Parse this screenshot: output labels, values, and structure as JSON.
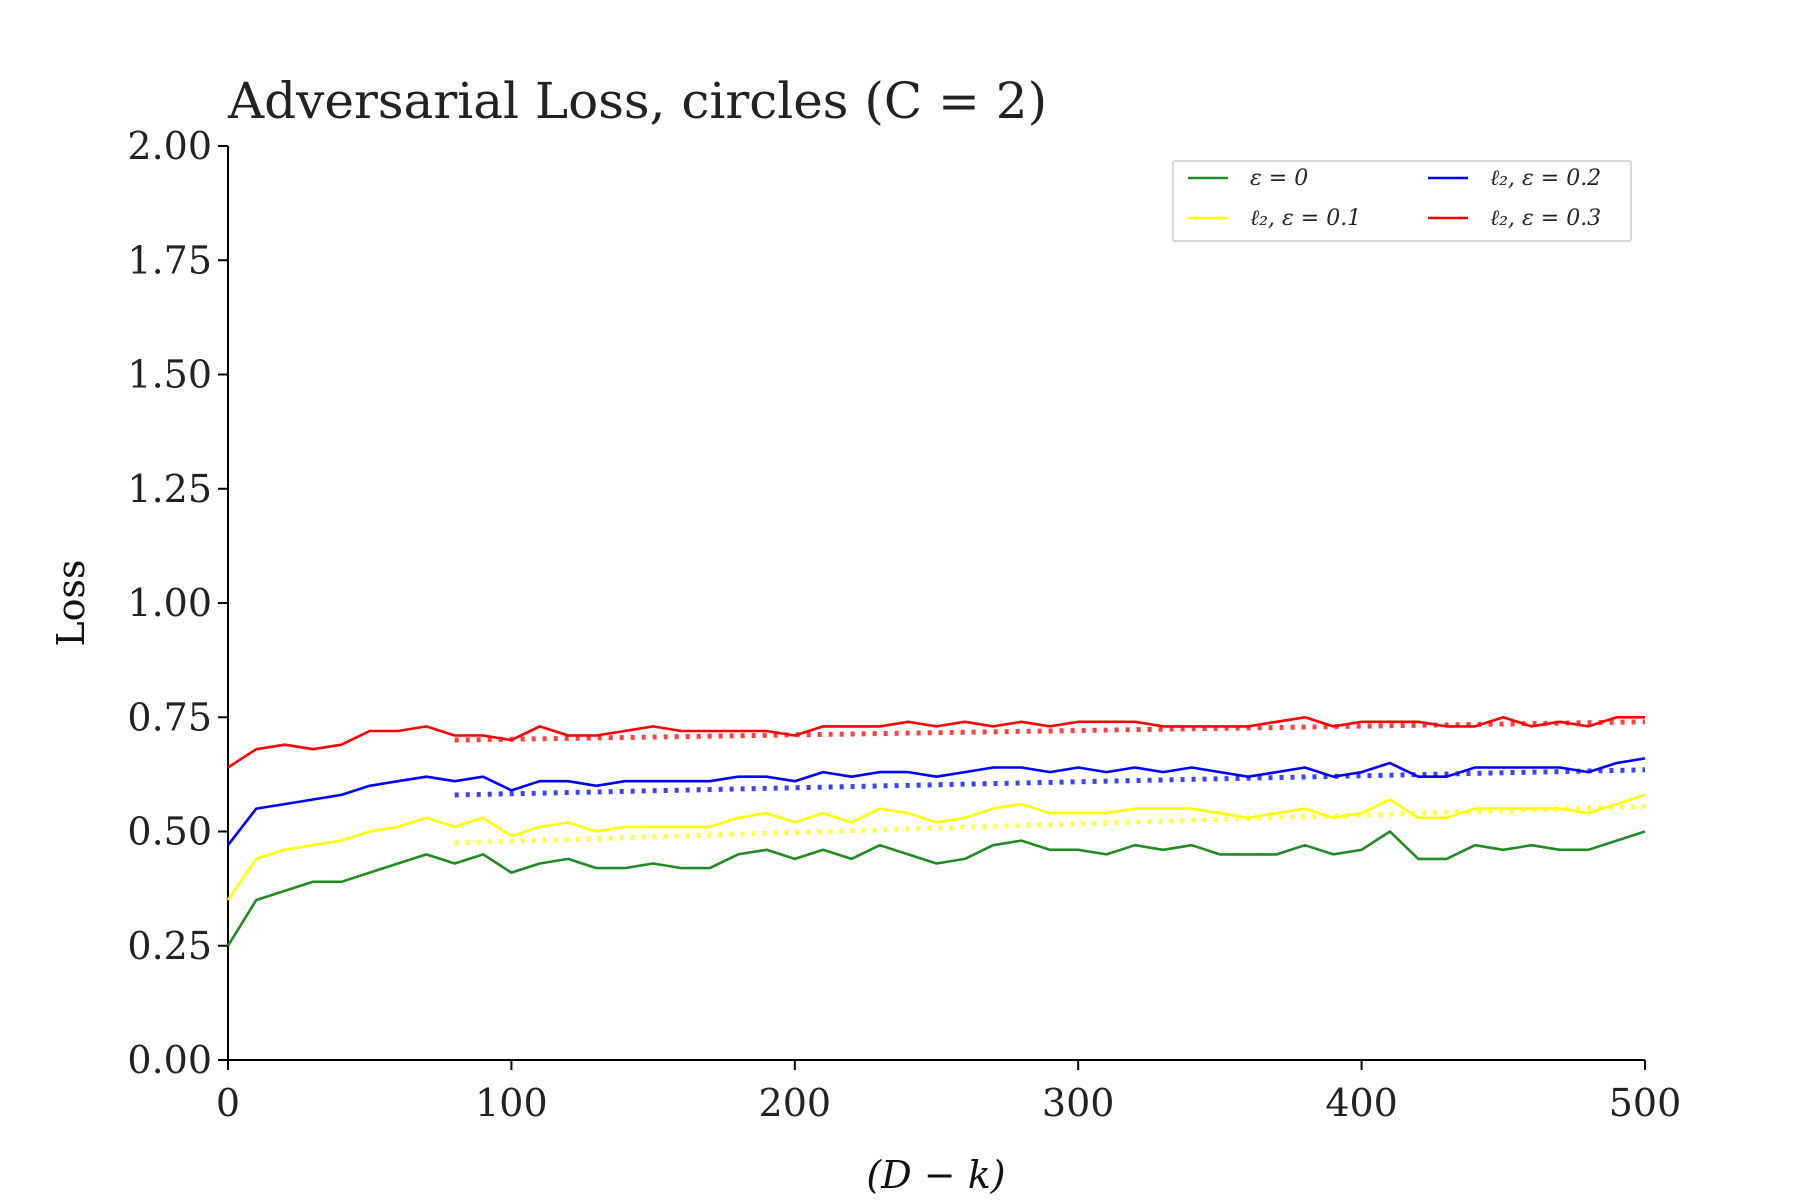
{
  "chart_data": {
    "type": "line",
    "title": "Adversarial Loss, circles (C = 2)",
    "xlabel": "(D − k)",
    "ylabel": "Loss",
    "xlim": [
      0,
      500
    ],
    "ylim": [
      0,
      2
    ],
    "xticks": [
      0,
      100,
      200,
      300,
      400,
      500
    ],
    "xtick_labels": [
      "0",
      "100",
      "200",
      "300",
      "400",
      "500"
    ],
    "yticks": [
      0,
      0.25,
      0.5,
      0.75,
      1.0,
      1.25,
      1.5,
      1.75,
      2.0
    ],
    "ytick_labels": [
      "0.00",
      "0.25",
      "0.50",
      "0.75",
      "1.00",
      "1.25",
      "1.50",
      "1.75",
      "2.00"
    ],
    "grid": false,
    "legend_position": "top-right",
    "x": [
      0,
      10,
      20,
      30,
      40,
      50,
      60,
      70,
      80,
      90,
      100,
      110,
      120,
      130,
      140,
      150,
      160,
      170,
      180,
      190,
      200,
      210,
      220,
      230,
      240,
      250,
      260,
      270,
      280,
      290,
      300,
      310,
      320,
      330,
      340,
      350,
      360,
      370,
      380,
      390,
      400,
      410,
      420,
      430,
      440,
      450,
      460,
      470,
      480,
      490,
      500
    ],
    "series": [
      {
        "name": "ε = 0",
        "color": "#228B22",
        "values": [
          0.25,
          0.35,
          0.37,
          0.39,
          0.39,
          0.41,
          0.43,
          0.45,
          0.43,
          0.45,
          0.41,
          0.43,
          0.44,
          0.42,
          0.42,
          0.43,
          0.42,
          0.42,
          0.45,
          0.46,
          0.44,
          0.46,
          0.44,
          0.47,
          0.45,
          0.43,
          0.44,
          0.47,
          0.48,
          0.46,
          0.46,
          0.45,
          0.47,
          0.46,
          0.47,
          0.45,
          0.45,
          0.45,
          0.47,
          0.45,
          0.46,
          0.5,
          0.44,
          0.44,
          0.47,
          0.46,
          0.47,
          0.46,
          0.46,
          0.48,
          0.5
        ]
      },
      {
        "name": "ℓ₂, ε = 0.1",
        "color": "#FFFF00",
        "values": [
          0.35,
          0.44,
          0.46,
          0.47,
          0.48,
          0.5,
          0.51,
          0.53,
          0.51,
          0.53,
          0.49,
          0.51,
          0.52,
          0.5,
          0.51,
          0.51,
          0.51,
          0.51,
          0.53,
          0.54,
          0.52,
          0.54,
          0.52,
          0.55,
          0.54,
          0.52,
          0.53,
          0.55,
          0.56,
          0.54,
          0.54,
          0.54,
          0.55,
          0.55,
          0.55,
          0.54,
          0.53,
          0.54,
          0.55,
          0.53,
          0.54,
          0.57,
          0.53,
          0.53,
          0.55,
          0.55,
          0.55,
          0.55,
          0.54,
          0.56,
          0.58
        ],
        "fit_x": [
          80,
          500
        ],
        "fit_values": [
          0.475,
          0.555
        ]
      },
      {
        "name": "ℓ₂, ε = 0.2",
        "color": "#0000FF",
        "values": [
          0.47,
          0.55,
          0.56,
          0.57,
          0.58,
          0.6,
          0.61,
          0.62,
          0.61,
          0.62,
          0.59,
          0.61,
          0.61,
          0.6,
          0.61,
          0.61,
          0.61,
          0.61,
          0.62,
          0.62,
          0.61,
          0.63,
          0.62,
          0.63,
          0.63,
          0.62,
          0.63,
          0.64,
          0.64,
          0.63,
          0.64,
          0.63,
          0.64,
          0.63,
          0.64,
          0.63,
          0.62,
          0.63,
          0.64,
          0.62,
          0.63,
          0.65,
          0.62,
          0.62,
          0.64,
          0.64,
          0.64,
          0.64,
          0.63,
          0.65,
          0.66
        ],
        "fit_x": [
          80,
          500
        ],
        "fit_values": [
          0.58,
          0.635
        ]
      },
      {
        "name": "ℓ₂, ε = 0.3",
        "color": "#FF0000",
        "values": [
          0.64,
          0.68,
          0.69,
          0.68,
          0.69,
          0.72,
          0.72,
          0.73,
          0.71,
          0.71,
          0.7,
          0.73,
          0.71,
          0.71,
          0.72,
          0.73,
          0.72,
          0.72,
          0.72,
          0.72,
          0.71,
          0.73,
          0.73,
          0.73,
          0.74,
          0.73,
          0.74,
          0.73,
          0.74,
          0.73,
          0.74,
          0.74,
          0.74,
          0.73,
          0.73,
          0.73,
          0.73,
          0.74,
          0.75,
          0.73,
          0.74,
          0.74,
          0.74,
          0.73,
          0.73,
          0.75,
          0.73,
          0.74,
          0.73,
          0.75,
          0.75
        ],
        "fit_x": [
          80,
          500
        ],
        "fit_values": [
          0.7,
          0.74
        ]
      }
    ]
  }
}
